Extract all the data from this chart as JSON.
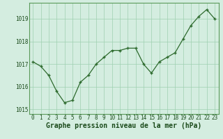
{
  "x": [
    0,
    1,
    2,
    3,
    4,
    5,
    6,
    7,
    8,
    9,
    10,
    11,
    12,
    13,
    14,
    15,
    16,
    17,
    18,
    19,
    20,
    21,
    22,
    23
  ],
  "y": [
    1017.1,
    1016.9,
    1016.5,
    1015.8,
    1015.3,
    1015.4,
    1016.2,
    1016.5,
    1017.0,
    1017.3,
    1017.6,
    1017.6,
    1017.7,
    1017.7,
    1017.0,
    1016.6,
    1017.1,
    1017.3,
    1017.5,
    1018.1,
    1018.7,
    1019.1,
    1019.4,
    1019.0
  ],
  "line_color": "#2d6a2d",
  "marker": "+",
  "marker_color": "#2d6a2d",
  "bg_color": "#d4ede0",
  "plot_bg_color": "#d4ede0",
  "grid_color": "#9ecfb0",
  "xlabel": "Graphe pression niveau de la mer (hPa)",
  "xlabel_color": "#1a4a1a",
  "ylim": [
    1014.8,
    1019.7
  ],
  "yticks": [
    1015,
    1016,
    1017,
    1018,
    1019
  ],
  "xticks": [
    0,
    1,
    2,
    3,
    4,
    5,
    6,
    7,
    8,
    9,
    10,
    11,
    12,
    13,
    14,
    15,
    16,
    17,
    18,
    19,
    20,
    21,
    22,
    23
  ],
  "tick_label_color": "#1a4a1a",
  "tick_label_fontsize": 5.5,
  "xlabel_fontsize": 7.0,
  "xlabel_fontweight": "bold",
  "axis_line_color": "#2d6a2d",
  "spine_color": "#5a9a5a"
}
